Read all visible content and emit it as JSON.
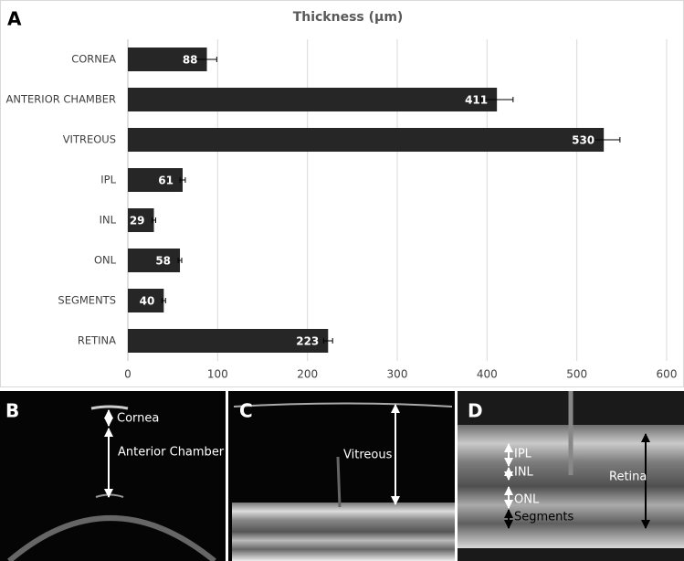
{
  "chart_data": {
    "type": "hbar",
    "title": "Thickness (µm)",
    "categories": [
      "CORNEA",
      "ANTERIOR CHAMBER",
      "VITREOUS",
      "IPL",
      "INL",
      "ONL",
      "SEGMENTS",
      "RETINA"
    ],
    "values": [
      88,
      411,
      530,
      61,
      29,
      58,
      40,
      223
    ],
    "errors": [
      11,
      18,
      18,
      3,
      2,
      2,
      2,
      5
    ],
    "color": "#262626",
    "xlim": [
      0,
      600
    ],
    "xticks": [
      0,
      100,
      200,
      300,
      400,
      500,
      600
    ],
    "grid": true
  },
  "panels": {
    "a": "A",
    "b": {
      "label": "B",
      "annotations": [
        "Cornea",
        "Anterior Chamber"
      ]
    },
    "c": {
      "label": "C",
      "annotations": [
        "Vitreous"
      ]
    },
    "d": {
      "label": "D",
      "annotations": [
        "IPL",
        "INL",
        "ONL",
        "Segments",
        "Retina"
      ]
    }
  }
}
